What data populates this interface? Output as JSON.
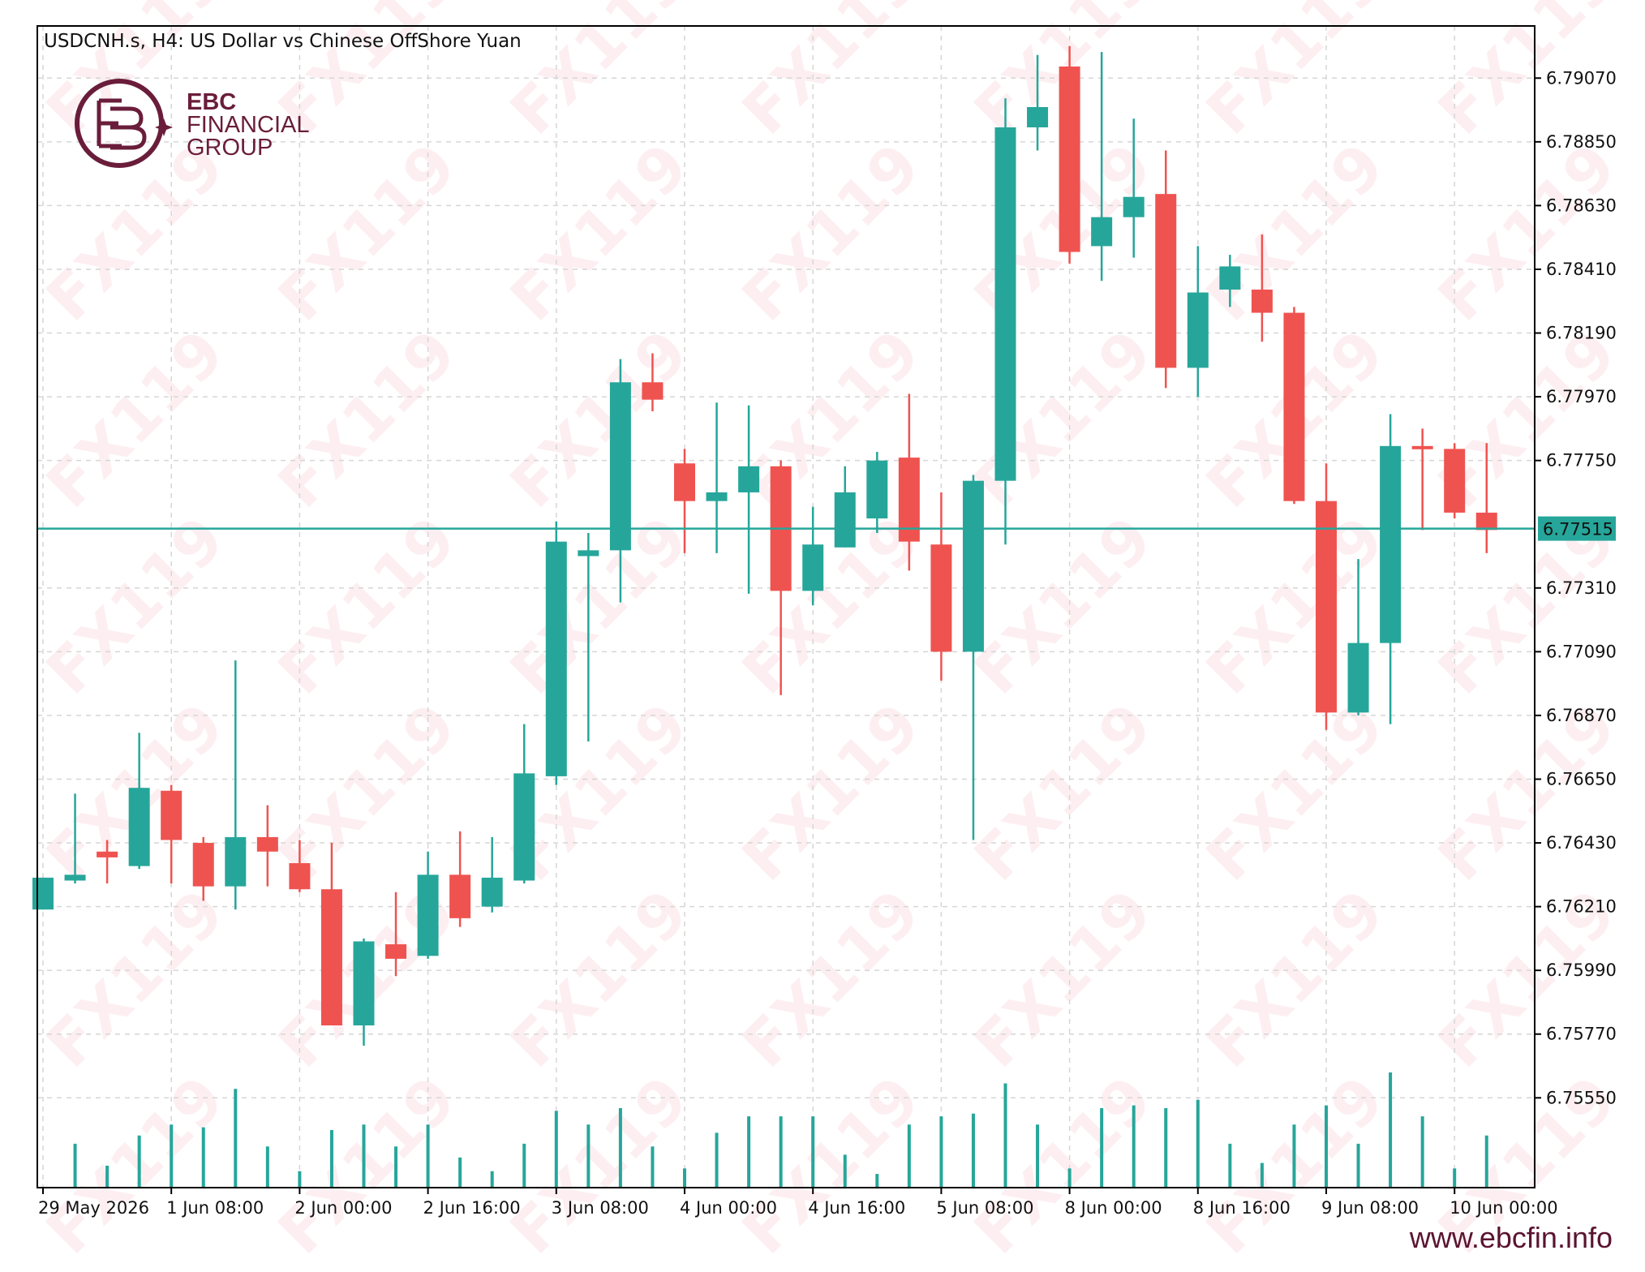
{
  "chart_data": {
    "type": "candlestick",
    "title": "USDCNH.s, H4:  US Dollar vs Chinese OffShore Yuan",
    "y_ticks": [
      "6.79070",
      "6.78850",
      "6.78630",
      "6.78410",
      "6.78190",
      "6.77970",
      "6.77750",
      "6.77310",
      "6.77090",
      "6.76870",
      "6.76650",
      "6.76430",
      "6.76210",
      "6.75990",
      "6.75770",
      "6.75550"
    ],
    "ylim": [
      6.7524,
      6.7925
    ],
    "current_price": 6.77515,
    "current_price_label": "6.77515",
    "x_labels": [
      {
        "i": 0,
        "text": "29 May 2026"
      },
      {
        "i": 4,
        "text": "1 Jun 08:00"
      },
      {
        "i": 8,
        "text": "2 Jun 00:00"
      },
      {
        "i": 12,
        "text": "2 Jun 16:00"
      },
      {
        "i": 16,
        "text": "3 Jun 08:00"
      },
      {
        "i": 20,
        "text": "4 Jun 00:00"
      },
      {
        "i": 24,
        "text": "4 Jun 16:00"
      },
      {
        "i": 28,
        "text": "5 Jun 08:00"
      },
      {
        "i": 32,
        "text": "8 Jun 00:00"
      },
      {
        "i": 36,
        "text": "8 Jun 16:00"
      },
      {
        "i": 40,
        "text": "9 Jun 08:00"
      },
      {
        "i": 44,
        "text": "10 Jun 00:00"
      }
    ],
    "candles": [
      {
        "o": 6.762,
        "h": 6.7631,
        "l": 6.762,
        "c": 6.7631
      },
      {
        "o": 6.763,
        "h": 6.766,
        "l": 6.7629,
        "c": 6.7632
      },
      {
        "o": 6.764,
        "h": 6.7644,
        "l": 6.7629,
        "c": 6.7638
      },
      {
        "o": 6.7635,
        "h": 6.7681,
        "l": 6.7634,
        "c": 6.7662
      },
      {
        "o": 6.7661,
        "h": 6.7663,
        "l": 6.7629,
        "c": 6.7644
      },
      {
        "o": 6.7643,
        "h": 6.7645,
        "l": 6.7623,
        "c": 6.7628
      },
      {
        "o": 6.7628,
        "h": 6.7706,
        "l": 6.762,
        "c": 6.7645
      },
      {
        "o": 6.7645,
        "h": 6.7656,
        "l": 6.7628,
        "c": 6.764
      },
      {
        "o": 6.7636,
        "h": 6.7644,
        "l": 6.7626,
        "c": 6.7627
      },
      {
        "o": 6.7627,
        "h": 6.7643,
        "l": 6.758,
        "c": 6.758
      },
      {
        "o": 6.758,
        "h": 6.761,
        "l": 6.7573,
        "c": 6.7609
      },
      {
        "o": 6.7608,
        "h": 6.7626,
        "l": 6.7597,
        "c": 6.7603
      },
      {
        "o": 6.7604,
        "h": 6.764,
        "l": 6.7603,
        "c": 6.7632
      },
      {
        "o": 6.7632,
        "h": 6.7647,
        "l": 6.7614,
        "c": 6.7617
      },
      {
        "o": 6.7621,
        "h": 6.7645,
        "l": 6.7619,
        "c": 6.7631
      },
      {
        "o": 6.763,
        "h": 6.7684,
        "l": 6.7629,
        "c": 6.7667
      },
      {
        "o": 6.7666,
        "h": 6.7754,
        "l": 6.7663,
        "c": 6.7747
      },
      {
        "o": 6.7742,
        "h": 6.775,
        "l": 6.7678,
        "c": 6.7744
      },
      {
        "o": 6.7744,
        "h": 6.781,
        "l": 6.7726,
        "c": 6.7802
      },
      {
        "o": 6.7802,
        "h": 6.7812,
        "l": 6.7792,
        "c": 6.7796
      },
      {
        "o": 6.7774,
        "h": 6.7779,
        "l": 6.7743,
        "c": 6.7761
      },
      {
        "o": 6.7761,
        "h": 6.7795,
        "l": 6.7743,
        "c": 6.7764
      },
      {
        "o": 6.7764,
        "h": 6.7794,
        "l": 6.7729,
        "c": 6.7773
      },
      {
        "o": 6.7773,
        "h": 6.7775,
        "l": 6.7694,
        "c": 6.773
      },
      {
        "o": 6.773,
        "h": 6.7759,
        "l": 6.7725,
        "c": 6.7746
      },
      {
        "o": 6.7745,
        "h": 6.7773,
        "l": 6.7745,
        "c": 6.7764
      },
      {
        "o": 6.7755,
        "h": 6.7778,
        "l": 6.775,
        "c": 6.7775
      },
      {
        "o": 6.7776,
        "h": 6.7798,
        "l": 6.7737,
        "c": 6.7747
      },
      {
        "o": 6.7746,
        "h": 6.7764,
        "l": 6.7699,
        "c": 6.7709
      },
      {
        "o": 6.7709,
        "h": 6.777,
        "l": 6.7644,
        "c": 6.7768
      },
      {
        "o": 6.7768,
        "h": 6.79,
        "l": 6.7746,
        "c": 6.789
      },
      {
        "o": 6.789,
        "h": 6.7915,
        "l": 6.7882,
        "c": 6.7897
      },
      {
        "o": 6.7911,
        "h": 6.7918,
        "l": 6.7843,
        "c": 6.7847
      },
      {
        "o": 6.7849,
        "h": 6.7916,
        "l": 6.7837,
        "c": 6.7859
      },
      {
        "o": 6.7859,
        "h": 6.7893,
        "l": 6.7845,
        "c": 6.7866
      },
      {
        "o": 6.7867,
        "h": 6.7882,
        "l": 6.78,
        "c": 6.7807
      },
      {
        "o": 6.7807,
        "h": 6.7849,
        "l": 6.7797,
        "c": 6.7833
      },
      {
        "o": 6.7834,
        "h": 6.7846,
        "l": 6.7828,
        "c": 6.7842
      },
      {
        "o": 6.7834,
        "h": 6.7853,
        "l": 6.7816,
        "c": 6.7826
      },
      {
        "o": 6.7826,
        "h": 6.7828,
        "l": 6.776,
        "c": 6.7761
      },
      {
        "o": 6.7761,
        "h": 6.7774,
        "l": 6.7682,
        "c": 6.7688
      },
      {
        "o": 6.7688,
        "h": 6.7741,
        "l": 6.7687,
        "c": 6.7712
      },
      {
        "o": 6.7712,
        "h": 6.7791,
        "l": 6.7684,
        "c": 6.778
      },
      {
        "o": 6.778,
        "h": 6.7786,
        "l": 6.7751,
        "c": 6.7779
      },
      {
        "o": 6.7779,
        "h": 6.7781,
        "l": 6.7755,
        "c": 6.7757
      },
      {
        "o": 6.7757,
        "h": 6.7781,
        "l": 6.7743,
        "c": 6.7751
      }
    ],
    "volumes": [
      0,
      16,
      8,
      19,
      23,
      22,
      36,
      15,
      6,
      21,
      23,
      15,
      23,
      11,
      6,
      16,
      28,
      23,
      29,
      15,
      7,
      20,
      26,
      26,
      26,
      12,
      5,
      23,
      26,
      27,
      38,
      23,
      7,
      29,
      30,
      29,
      32,
      16,
      9,
      23,
      30,
      16,
      42,
      26,
      7,
      19
    ],
    "colors": {
      "bull": "#26a69a",
      "bear": "#ef5350",
      "price_line": "#26a69a",
      "grid": "#d6d6d6"
    }
  },
  "brand": {
    "line1": "EBC",
    "line2": "FINANCIAL",
    "line3": "GROUP",
    "watermark": "FX119",
    "website": "www.ebcfin.info"
  }
}
